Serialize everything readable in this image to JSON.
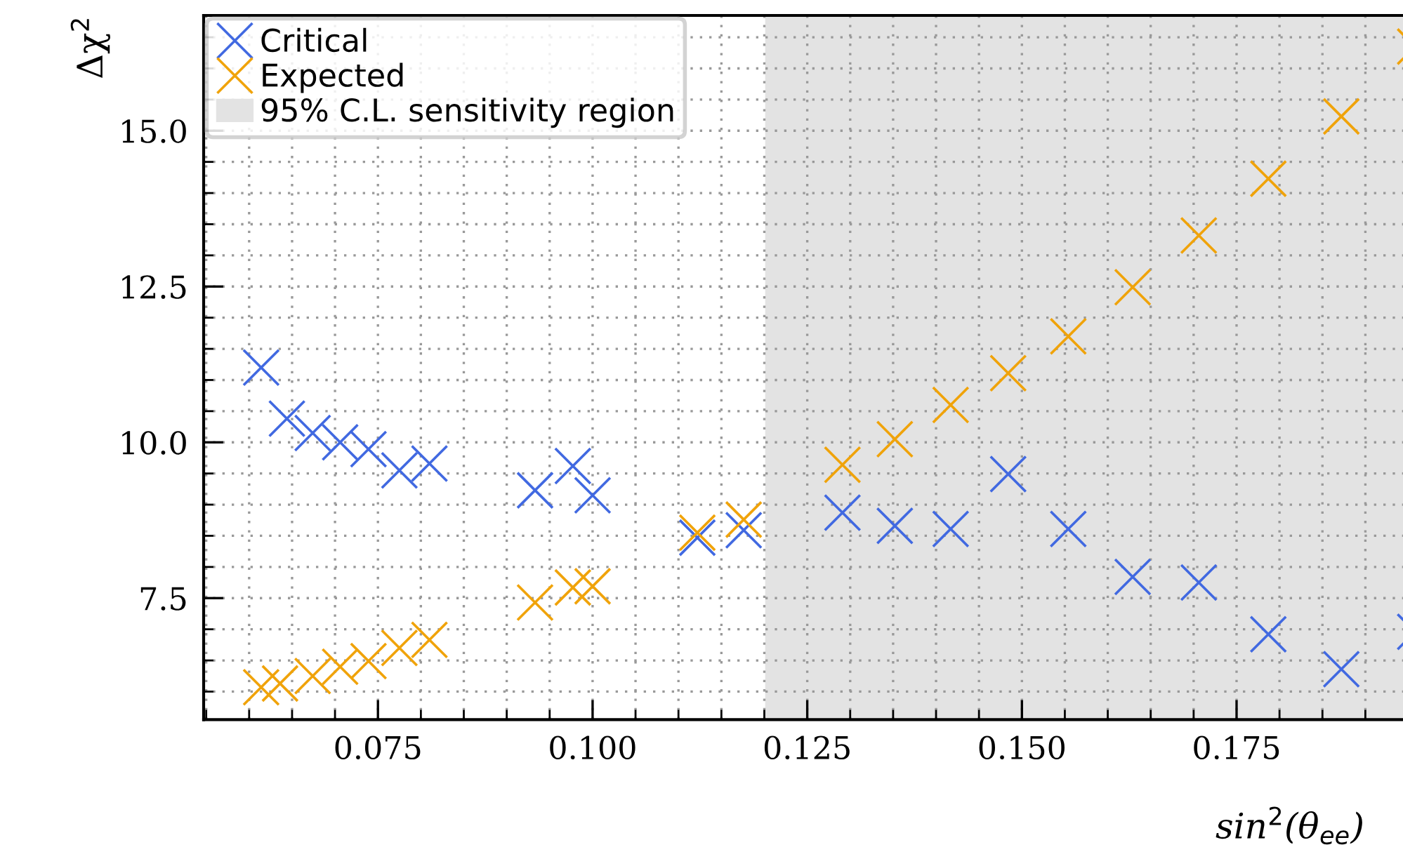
{
  "chart_data": {
    "type": "scatter",
    "xlabel": "sin$^{2}$(θ$_{ee}$)",
    "ylabel": "Δχ$^{2}$",
    "marker": "cross",
    "grid": true,
    "legend": "top left",
    "xlim": [
      0.0547,
      0.197
    ],
    "ylim": [
      5.55,
      16.85
    ],
    "xticks": [
      {
        "value": 0.055,
        "label": null
      },
      {
        "value": 0.06,
        "label": null
      },
      {
        "value": 0.065,
        "label": null
      },
      {
        "value": 0.07,
        "label": null
      },
      {
        "value": 0.075,
        "label": "0.075"
      },
      {
        "value": 0.08,
        "label": null
      },
      {
        "value": 0.085,
        "label": null
      },
      {
        "value": 0.09,
        "label": null
      },
      {
        "value": 0.095,
        "label": null
      },
      {
        "value": 0.1,
        "label": "0.100"
      },
      {
        "value": 0.105,
        "label": null
      },
      {
        "value": 0.11,
        "label": null
      },
      {
        "value": 0.115,
        "label": null
      },
      {
        "value": 0.12,
        "label": null
      },
      {
        "value": 0.125,
        "label": "0.125"
      },
      {
        "value": 0.13,
        "label": null
      },
      {
        "value": 0.135,
        "label": null
      },
      {
        "value": 0.14,
        "label": null
      },
      {
        "value": 0.145,
        "label": null
      },
      {
        "value": 0.15,
        "label": "0.150"
      },
      {
        "value": 0.155,
        "label": null
      },
      {
        "value": 0.16,
        "label": null
      },
      {
        "value": 0.165,
        "label": null
      },
      {
        "value": 0.17,
        "label": null
      },
      {
        "value": 0.175,
        "label": "0.175"
      },
      {
        "value": 0.18,
        "label": null
      },
      {
        "value": 0.185,
        "label": null
      },
      {
        "value": 0.19,
        "label": null
      },
      {
        "value": 0.195,
        "label": null
      }
    ],
    "yticks": [
      {
        "value": 6.0,
        "label": null
      },
      {
        "value": 6.5,
        "label": null
      },
      {
        "value": 7.0,
        "label": null
      },
      {
        "value": 7.5,
        "label": "7.5"
      },
      {
        "value": 8.0,
        "label": null
      },
      {
        "value": 8.5,
        "label": null
      },
      {
        "value": 9.0,
        "label": null
      },
      {
        "value": 9.5,
        "label": null
      },
      {
        "value": 10.0,
        "label": "10.0"
      },
      {
        "value": 10.5,
        "label": null
      },
      {
        "value": 11.0,
        "label": null
      },
      {
        "value": 11.5,
        "label": null
      },
      {
        "value": 12.0,
        "label": null
      },
      {
        "value": 12.5,
        "label": "12.5"
      },
      {
        "value": 13.0,
        "label": null
      },
      {
        "value": 13.5,
        "label": null
      },
      {
        "value": 14.0,
        "label": null
      },
      {
        "value": 14.5,
        "label": null
      },
      {
        "value": 15.0,
        "label": "15.0"
      },
      {
        "value": 15.5,
        "label": null
      },
      {
        "value": 16.0,
        "label": null
      },
      {
        "value": 16.5,
        "label": null
      }
    ],
    "bands": [
      {
        "axis": "x",
        "from": 0.1201,
        "to": 0.197,
        "label": "95% C.L. sensitivity region",
        "color": "#e3e3e3"
      }
    ],
    "series": [
      {
        "name": "Critical",
        "color": "#4169e1",
        "x": [
          0.0614,
          0.0644,
          0.0674,
          0.0706,
          0.0739,
          0.0775,
          0.081,
          0.0933,
          0.0977,
          0.1,
          0.1122,
          0.1176,
          0.1291,
          0.1352,
          0.1417,
          0.1484,
          0.1554,
          0.1629,
          0.1706,
          0.1787,
          0.1872,
          0.1958
        ],
        "values": [
          11.2,
          10.38,
          10.15,
          10.0,
          9.89,
          9.55,
          9.66,
          9.23,
          9.62,
          9.15,
          8.47,
          8.59,
          8.87,
          8.66,
          8.61,
          9.49,
          8.61,
          7.84,
          7.75,
          6.92,
          6.36,
          6.96
        ]
      },
      {
        "name": "Expected",
        "color": "#f0a30a",
        "x": [
          0.0614,
          0.0636,
          0.0674,
          0.0706,
          0.0739,
          0.0775,
          0.081,
          0.0933,
          0.0977,
          0.1,
          0.1122,
          0.1176,
          0.1291,
          0.1352,
          0.1417,
          0.1484,
          0.1554,
          0.1629,
          0.1706,
          0.1787,
          0.1872,
          0.1958
        ],
        "values": [
          6.07,
          6.13,
          6.25,
          6.4,
          6.49,
          6.7,
          6.83,
          7.43,
          7.67,
          7.69,
          8.55,
          8.76,
          9.64,
          10.05,
          10.6,
          11.11,
          11.7,
          12.49,
          13.32,
          14.23,
          15.23,
          16.35
        ]
      }
    ]
  }
}
